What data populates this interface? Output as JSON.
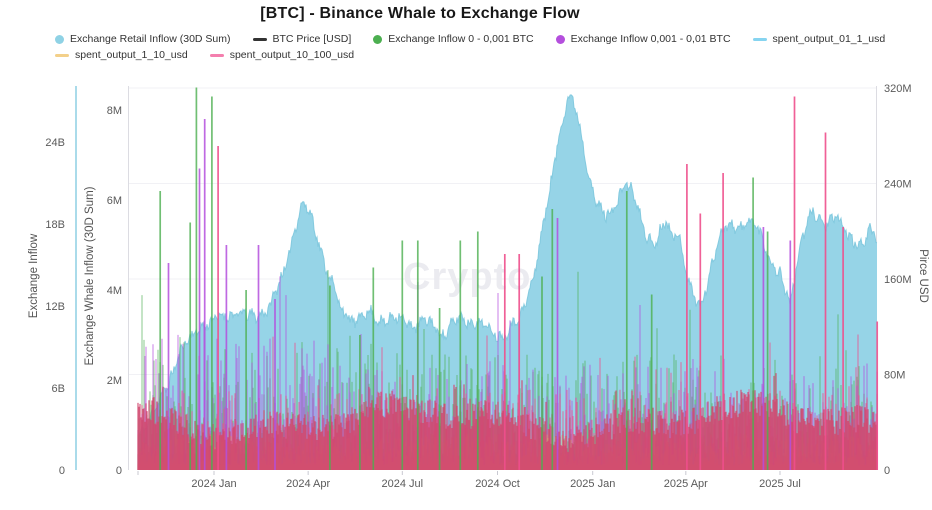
{
  "title": "[BTC] - Binance Whale to Exchange Flow",
  "watermark": "CryptoQuant",
  "legend": {
    "items": [
      {
        "label": "Exchange Retail Inflow (30D Sum)",
        "marker": "circle",
        "color": "#8fd2e5"
      },
      {
        "label": "BTC Price [USD]",
        "marker": "line",
        "color": "#333333"
      },
      {
        "label": "Exchange Inflow 0 - 0,001 BTC",
        "marker": "circle",
        "color": "#4caf50"
      },
      {
        "label": "Exchange Inflow 0,001 - 0,01 BTC",
        "marker": "circle",
        "color": "#b44fdd"
      },
      {
        "label": "spent_output_01_1_usd",
        "marker": "line",
        "color": "#86d4f0"
      },
      {
        "label": "spent_output_1_10_usd",
        "marker": "line",
        "color": "#f3d08a"
      },
      {
        "label": "spent_output_10_100_usd",
        "marker": "line",
        "color": "#f47fae"
      }
    ]
  },
  "axes": {
    "left_outer": {
      "title": "Exchange Inflow",
      "ticks": [
        "0",
        "6B",
        "12B",
        "18B",
        "24B"
      ]
    },
    "left_inner": {
      "title": "Exchange Whale Inflow (30D Sum)",
      "ticks": [
        "0",
        "2M",
        "4M",
        "6M",
        "8M"
      ]
    },
    "right": {
      "title": "Pirce USD",
      "ticks": [
        "0",
        "80M",
        "160M",
        "240M",
        "320M"
      ]
    },
    "x": {
      "ticks": [
        "2024 Jan",
        "2024 Apr",
        "2024 Jul",
        "2024 Oct",
        "2025 Jan",
        "2025 Apr",
        "2025 Jul"
      ],
      "domain": [
        "2023-10-20",
        "2025-10-03"
      ]
    }
  },
  "chart_data": {
    "type": "mixed",
    "title": "[BTC] - Binance Whale to Exchange Flow",
    "x_domain": [
      "2023-10-20",
      "2025-10-03"
    ],
    "grid": "horizontal-faint",
    "legend_position": "top",
    "series": [
      {
        "name": "Exchange Retail Inflow (30D Sum)",
        "type": "area",
        "color": "#96d4e7",
        "axis": "Exchange Whale Inflow (30D Sum)",
        "unit": "M",
        "axis_range": [
          0,
          8.5
        ],
        "keypoints": [
          [
            "2023-10-20",
            0.8
          ],
          [
            "2023-10-31",
            1.1
          ],
          [
            "2023-11-15",
            1.8
          ],
          [
            "2023-11-29",
            2.6
          ],
          [
            "2023-12-18",
            3.2
          ],
          [
            "2024-01-01",
            3.3
          ],
          [
            "2024-01-16",
            3.5
          ],
          [
            "2024-02-05",
            3.4
          ],
          [
            "2024-02-24",
            3.6
          ],
          [
            "2024-03-10",
            4.5
          ],
          [
            "2024-03-19",
            5.4
          ],
          [
            "2024-03-27",
            5.9
          ],
          [
            "2024-04-05",
            5.6
          ],
          [
            "2024-04-17",
            4.6
          ],
          [
            "2024-05-02",
            3.6
          ],
          [
            "2024-05-16",
            3.3
          ],
          [
            "2024-05-31",
            3.5
          ],
          [
            "2024-06-14",
            3.3
          ],
          [
            "2024-06-29",
            3.4
          ],
          [
            "2024-07-13",
            3.2
          ],
          [
            "2024-07-28",
            3.3
          ],
          [
            "2024-08-11",
            3.0
          ],
          [
            "2024-08-26",
            3.4
          ],
          [
            "2024-09-09",
            3.3
          ],
          [
            "2024-09-24",
            3.1
          ],
          [
            "2024-10-08",
            3.0
          ],
          [
            "2024-10-23",
            3.4
          ],
          [
            "2024-11-06",
            4.4
          ],
          [
            "2024-11-19",
            6.0
          ],
          [
            "2024-11-28",
            7.3
          ],
          [
            "2024-12-08",
            8.3
          ],
          [
            "2024-12-16",
            8.0
          ],
          [
            "2024-12-25",
            7.0
          ],
          [
            "2025-01-03",
            6.0
          ],
          [
            "2025-01-13",
            5.6
          ],
          [
            "2025-01-23",
            5.9
          ],
          [
            "2025-02-01",
            6.4
          ],
          [
            "2025-02-09",
            6.1
          ],
          [
            "2025-02-21",
            5.3
          ],
          [
            "2025-03-02",
            5.0
          ],
          [
            "2025-03-12",
            5.5
          ],
          [
            "2025-03-19",
            5.3
          ],
          [
            "2025-03-26",
            5.2
          ],
          [
            "2025-04-05",
            4.0
          ],
          [
            "2025-04-15",
            3.6
          ],
          [
            "2025-04-24",
            4.4
          ],
          [
            "2025-05-04",
            5.2
          ],
          [
            "2025-05-14",
            5.5
          ],
          [
            "2025-05-25",
            5.4
          ],
          [
            "2025-06-04",
            5.5
          ],
          [
            "2025-06-14",
            5.2
          ],
          [
            "2025-06-23",
            4.6
          ],
          [
            "2025-07-01",
            4.3
          ],
          [
            "2025-07-11",
            3.7
          ],
          [
            "2025-07-20",
            5.0
          ],
          [
            "2025-08-01",
            5.7
          ],
          [
            "2025-08-13",
            5.5
          ],
          [
            "2025-08-24",
            5.6
          ],
          [
            "2025-09-05",
            5.2
          ],
          [
            "2025-09-17",
            5.0
          ],
          [
            "2025-09-26",
            5.3
          ],
          [
            "2025-10-03",
            5.1
          ]
        ]
      },
      {
        "name": "BTC Price [USD]",
        "type": "line",
        "color": "#333333",
        "axis": "Pirce USD",
        "axis_range": [
          0,
          320
        ],
        "note": "flat near zero at this axis scale - not visible in plot"
      },
      {
        "name": "Exchange Inflow 0 - 0,001 BTC",
        "type": "bar",
        "color": "#4caf50",
        "axis": "Exchange Whale Inflow (30D Sum)",
        "unit": "M",
        "noise_band": [
          0.3,
          2.6
        ],
        "spikes": [
          [
            "2023-11-10",
            6.2
          ],
          [
            "2023-12-09",
            5.5
          ],
          [
            "2023-12-15",
            8.5
          ],
          [
            "2023-12-30",
            8.3
          ],
          [
            "2024-02-01",
            4.0
          ],
          [
            "2024-04-22",
            4.1
          ],
          [
            "2024-05-21",
            3.0
          ],
          [
            "2024-06-03",
            4.5
          ],
          [
            "2024-07-01",
            5.1
          ],
          [
            "2024-07-16",
            5.1
          ],
          [
            "2024-08-06",
            3.6
          ],
          [
            "2024-08-26",
            5.1
          ],
          [
            "2024-09-12",
            5.3
          ],
          [
            "2024-11-13",
            4.3
          ],
          [
            "2024-11-23",
            5.8
          ],
          [
            "2025-02-03",
            6.2
          ],
          [
            "2025-02-27",
            3.9
          ],
          [
            "2025-06-05",
            6.5
          ],
          [
            "2025-06-19",
            5.3
          ]
        ]
      },
      {
        "name": "Exchange Inflow 0,001 - 0,01 BTC",
        "type": "bar",
        "color": "#b44fdd",
        "axis": "Exchange Whale Inflow (30D Sum)",
        "unit": "M",
        "noise_band": [
          0.3,
          2.5
        ],
        "spikes": [
          [
            "2023-11-18",
            4.6
          ],
          [
            "2023-12-18",
            6.7
          ],
          [
            "2023-12-23",
            7.8
          ],
          [
            "2024-01-13",
            5.0
          ],
          [
            "2024-02-13",
            5.0
          ],
          [
            "2024-02-29",
            3.8
          ],
          [
            "2024-11-28",
            5.6
          ],
          [
            "2025-06-15",
            5.4
          ],
          [
            "2025-07-11",
            5.1
          ]
        ]
      },
      {
        "name": "spent_output_01_1_usd",
        "type": "line",
        "color": "#7cc6dd",
        "note": "traces the upper edge of the retail inflow area"
      },
      {
        "name": "spent_output_1_10_usd",
        "type": "bar",
        "color": "#eda94f",
        "noise_band": [
          0.1,
          0.8
        ]
      },
      {
        "name": "spent_output_10_100_usd",
        "type": "bar",
        "color": "#ee4f8c",
        "mass_color": "#d0486f",
        "noise_band": [
          0.4,
          1.9
        ],
        "spikes": [
          [
            "2024-01-05",
            7.2
          ],
          [
            "2024-10-08",
            4.8
          ],
          [
            "2024-10-22",
            4.8
          ],
          [
            "2025-04-02",
            6.8
          ],
          [
            "2025-04-15",
            5.7
          ],
          [
            "2025-05-07",
            6.6
          ],
          [
            "2025-07-15",
            8.3
          ],
          [
            "2025-08-14",
            7.5
          ],
          [
            "2025-08-31",
            5.4
          ],
          [
            "2025-10-03",
            3.3
          ]
        ]
      }
    ]
  }
}
